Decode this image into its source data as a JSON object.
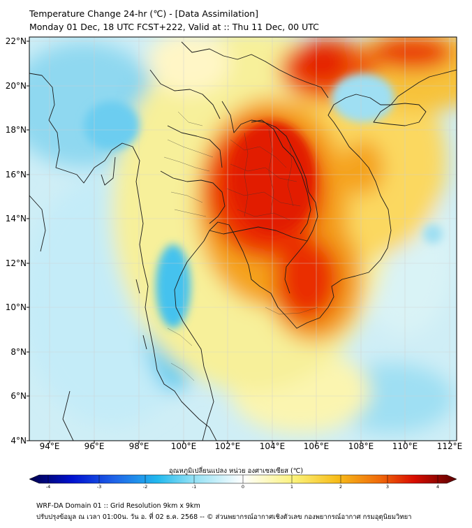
{
  "title": {
    "line1": "Temperature Change 24-hr (℃) - [Data Assimilation]",
    "line2": "Monday 01 Dec, 18 UTC FCST+222, Valid at :: Thu 11 Dec, 00 UTC"
  },
  "map": {
    "lat_labels": [
      "22°N",
      "20°N",
      "18°N",
      "16°N",
      "14°N",
      "12°N",
      "10°N",
      "8°N",
      "6°N",
      "4°N"
    ],
    "lon_labels": [
      "94°E",
      "96°E",
      "98°E",
      "100°E",
      "102°E",
      "104°E",
      "106°E",
      "108°E",
      "110°E",
      "112°E"
    ]
  },
  "colorbar": {
    "label": "อุณหภูมิเปลี่ยนแปลง หน่วย องศาเซลเซียส (℃)",
    "ticks": [
      "-4",
      "-3",
      "-2",
      "-1",
      "0",
      "1",
      "2",
      "3",
      "4"
    ],
    "min": -4,
    "max": 4
  },
  "footer": {
    "line1": "WRF-DA Domain 01 :: Grid Resolution 9km x 9km",
    "line2": "ปรับปรุงข้อมูล ณ เวลา 01:00น. วัน อ. ที่ 02 ธ.ค. 2568 -- © ส่วนพยากรณ์อากาศเชิงตัวเลข กองพยากรณ์อากาศ กรมอุตุนิยมวิทยา"
  }
}
